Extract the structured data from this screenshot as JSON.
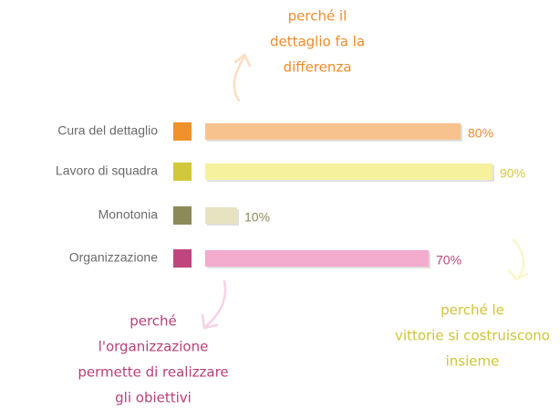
{
  "chart_data": {
    "type": "bar",
    "categories": [
      "Cura del dettaglio",
      "Lavoro di squadra",
      "Monotonia",
      "Organizzazione"
    ],
    "values": [
      80,
      90,
      10,
      70
    ],
    "value_labels": [
      "80%",
      "90%",
      "10%",
      "70%"
    ],
    "colors": [
      "#f8c28f",
      "#f6f19d",
      "#e7e3c0",
      "#f3abce"
    ],
    "marker_colors": [
      "#ef922b",
      "#d3c83c",
      "#8d8a59",
      "#c0457f"
    ],
    "label_colors": [
      "#e98b2c",
      "#d3c83c",
      "#8d8a59",
      "#c0457f"
    ],
    "annotations": [
      {
        "lines": [
          "perché il",
          "dettaglio fa la",
          "differenza"
        ],
        "color": "#ef8b2a"
      },
      {
        "lines": [
          "perché",
          "l'organizzazione",
          "permette di realizzare",
          "gli obiettivi"
        ],
        "color": "#b83f7a"
      },
      {
        "lines": [
          "perché le",
          "vittorie si costruiscono",
          "insieme"
        ],
        "color": "#cfc43a"
      }
    ]
  }
}
